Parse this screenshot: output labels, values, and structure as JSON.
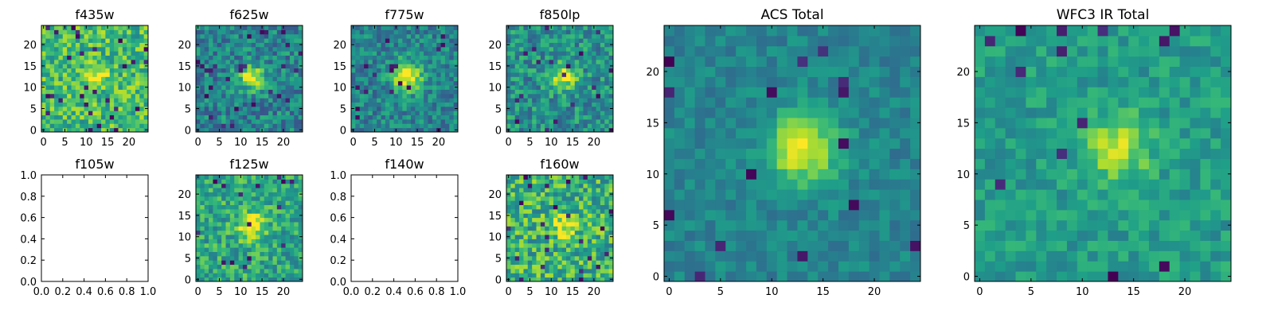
{
  "colormap": {
    "name": "viridis",
    "stops": [
      "#440154",
      "#482878",
      "#3e4989",
      "#31688e",
      "#26828e",
      "#1f9e89",
      "#35b779",
      "#6ece58",
      "#b5de2b",
      "#fde725"
    ]
  },
  "chart_data": [
    {
      "type": "heatmap",
      "title": "f435w",
      "grid_size": 25,
      "empty": false,
      "xticks": [
        0,
        5,
        10,
        15,
        20
      ],
      "yticks": [
        0,
        5,
        10,
        15,
        20
      ],
      "xlim": [
        -0.5,
        24.5
      ],
      "ylim": [
        -0.5,
        24.5
      ],
      "source_center": [
        12.5,
        12.5
      ],
      "source_strength": 0.35,
      "source_width": 1.6,
      "background_level": 0.68,
      "noise": 0.22,
      "dark_pixel_fraction": 0.04,
      "seed": 11
    },
    {
      "type": "heatmap",
      "title": "f625w",
      "grid_size": 25,
      "empty": false,
      "xticks": [
        0,
        5,
        10,
        15,
        20
      ],
      "yticks": [
        0,
        5,
        10,
        15,
        20
      ],
      "xlim": [
        -0.5,
        24.5
      ],
      "ylim": [
        -0.5,
        24.5
      ],
      "source_center": [
        12.5,
        12.5
      ],
      "source_strength": 0.55,
      "source_width": 2.0,
      "background_level": 0.45,
      "noise": 0.2,
      "dark_pixel_fraction": 0.04,
      "seed": 23
    },
    {
      "type": "heatmap",
      "title": "f775w",
      "grid_size": 25,
      "empty": false,
      "xticks": [
        0,
        5,
        10,
        15,
        20
      ],
      "yticks": [
        0,
        5,
        10,
        15,
        20
      ],
      "xlim": [
        -0.5,
        24.5
      ],
      "ylim": [
        -0.5,
        24.5
      ],
      "source_center": [
        12.5,
        12.5
      ],
      "source_strength": 0.6,
      "source_width": 2.4,
      "background_level": 0.45,
      "noise": 0.18,
      "dark_pixel_fraction": 0.03,
      "seed": 37
    },
    {
      "type": "heatmap",
      "title": "f850lp",
      "grid_size": 25,
      "empty": false,
      "xticks": [
        0,
        5,
        10,
        15,
        20
      ],
      "yticks": [
        0,
        5,
        10,
        15,
        20
      ],
      "xlim": [
        -0.5,
        24.5
      ],
      "ylim": [
        -0.5,
        24.5
      ],
      "source_center": [
        13,
        12.5
      ],
      "source_strength": 0.5,
      "source_width": 2.0,
      "background_level": 0.5,
      "noise": 0.2,
      "dark_pixel_fraction": 0.04,
      "seed": 41
    },
    {
      "type": "heatmap",
      "title": "f105w",
      "grid_size": 25,
      "empty": true,
      "xticks": [
        0.0,
        0.2,
        0.4,
        0.6,
        0.8,
        1.0
      ],
      "yticks": [
        0.0,
        0.2,
        0.4,
        0.6,
        0.8,
        1.0
      ],
      "xtick_labels": [
        "0.0",
        "0.2",
        "0.4",
        "0.6",
        "0.8",
        "1.0"
      ],
      "ytick_labels": [
        "0.0",
        "0.2",
        "0.4",
        "0.6",
        "0.8",
        "1.0"
      ],
      "xlim": [
        0,
        1
      ],
      "ylim": [
        0,
        1
      ]
    },
    {
      "type": "heatmap",
      "title": "f125w",
      "grid_size": 25,
      "empty": false,
      "xticks": [
        0,
        5,
        10,
        15,
        20
      ],
      "yticks": [
        0,
        5,
        10,
        15,
        20
      ],
      "xlim": [
        -0.5,
        24.5
      ],
      "ylim": [
        -0.5,
        24.5
      ],
      "source_center": [
        12.5,
        12.5
      ],
      "source_strength": 0.45,
      "source_width": 2.2,
      "background_level": 0.6,
      "noise": 0.2,
      "dark_pixel_fraction": 0.03,
      "seed": 53
    },
    {
      "type": "heatmap",
      "title": "f140w",
      "grid_size": 25,
      "empty": true,
      "xticks": [
        0.0,
        0.2,
        0.4,
        0.6,
        0.8,
        1.0
      ],
      "yticks": [
        0.0,
        0.2,
        0.4,
        0.6,
        0.8,
        1.0
      ],
      "xtick_labels": [
        "0.0",
        "0.2",
        "0.4",
        "0.6",
        "0.8",
        "1.0"
      ],
      "ytick_labels": [
        "0.0",
        "0.2",
        "0.4",
        "0.6",
        "0.8",
        "1.0"
      ],
      "xlim": [
        0,
        1
      ],
      "ylim": [
        0,
        1
      ]
    },
    {
      "type": "heatmap",
      "title": "f160w",
      "grid_size": 25,
      "empty": false,
      "xticks": [
        0,
        5,
        10,
        15,
        20
      ],
      "yticks": [
        0,
        5,
        10,
        15,
        20
      ],
      "xlim": [
        -0.5,
        24.5
      ],
      "ylim": [
        -0.5,
        24.5
      ],
      "source_center": [
        13,
        12.5
      ],
      "source_strength": 0.3,
      "source_width": 2.0,
      "background_level": 0.65,
      "noise": 0.24,
      "dark_pixel_fraction": 0.03,
      "seed": 67
    },
    {
      "type": "heatmap",
      "title": "ACS Total",
      "grid_size": 25,
      "empty": false,
      "xticks": [
        0,
        5,
        10,
        15,
        20
      ],
      "yticks": [
        0,
        5,
        10,
        15,
        20
      ],
      "xlim": [
        -0.5,
        24.5
      ],
      "ylim": [
        -0.5,
        24.5
      ],
      "source_center": [
        13,
        12.5
      ],
      "source_strength": 0.55,
      "source_width": 2.4,
      "background_level": 0.45,
      "noise": 0.1,
      "dark_pixel_fraction": 0.03,
      "seed": 79
    },
    {
      "type": "heatmap",
      "title": "WFC3 IR Total",
      "grid_size": 25,
      "empty": false,
      "xticks": [
        0,
        5,
        10,
        15,
        20
      ],
      "yticks": [
        0,
        5,
        10,
        15,
        20
      ],
      "xlim": [
        -0.5,
        24.5
      ],
      "ylim": [
        -0.5,
        24.5
      ],
      "source_center": [
        13.5,
        12.5
      ],
      "source_strength": 0.35,
      "source_width": 2.2,
      "background_level": 0.55,
      "noise": 0.12,
      "dark_pixel_fraction": 0.03,
      "seed": 97
    }
  ]
}
